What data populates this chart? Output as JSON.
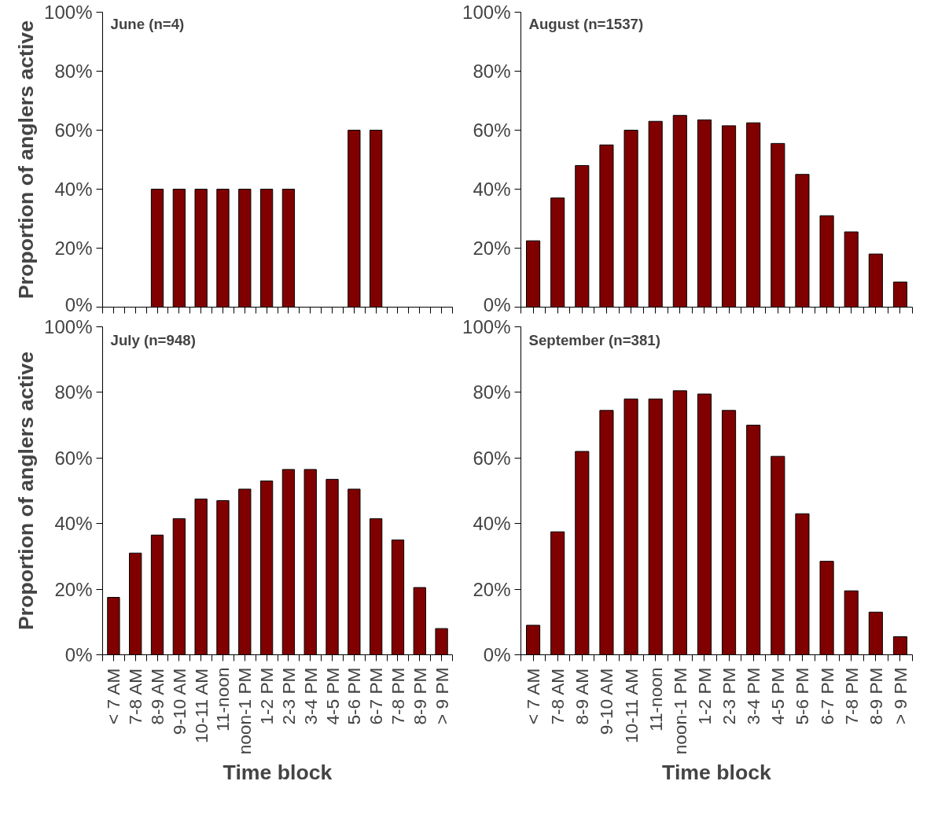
{
  "chart_data": [
    {
      "type": "bar",
      "title": "June (n=4)",
      "ylabel": "Proportion of anglers active",
      "categories": [
        null,
        null,
        null,
        null,
        null,
        null,
        null,
        null,
        null,
        null,
        null,
        null,
        null,
        null,
        null,
        null
      ],
      "values": [
        null,
        null,
        40,
        40,
        40,
        40,
        40,
        40,
        40,
        null,
        null,
        60,
        60,
        null,
        null,
        null
      ],
      "color": "#800000",
      "ylim": [
        0,
        100
      ],
      "yticks": [
        {
          "value": 0,
          "label": "0%"
        },
        {
          "value": 20,
          "label": "20%"
        },
        {
          "value": 40,
          "label": "40%"
        },
        {
          "value": 60,
          "label": "60%"
        },
        {
          "value": 80,
          "label": "80%"
        },
        {
          "value": 100,
          "label": "100%"
        }
      ],
      "tick_labels": "y",
      "grid": false
    },
    {
      "type": "bar",
      "title": "August (n=1537)",
      "categories": [
        null,
        null,
        null,
        null,
        null,
        null,
        null,
        null,
        null,
        null,
        null,
        null,
        null,
        null,
        null,
        null
      ],
      "values": [
        22.5,
        37,
        48,
        55,
        60,
        63,
        65,
        63.5,
        61.5,
        62.5,
        55.5,
        45,
        31,
        25.5,
        18,
        8.5
      ],
      "color": "#800000",
      "ylim": [
        0,
        100
      ],
      "yticks": [
        {
          "value": 0,
          "label": "0%"
        },
        {
          "value": 20,
          "label": "20%"
        },
        {
          "value": 40,
          "label": "40%"
        },
        {
          "value": 60,
          "label": "60%"
        },
        {
          "value": 80,
          "label": "80%"
        },
        {
          "value": 100,
          "label": "100%"
        }
      ],
      "tick_labels": "y",
      "grid": false
    },
    {
      "type": "bar",
      "title": "July (n=948)",
      "ylabel": "Proportion of anglers active",
      "xlabel": "Time block",
      "categories": [
        "< 7 AM",
        "7-8 AM",
        "8-9 AM",
        "9-10 AM",
        "10-11 AM",
        "11-noon",
        "noon-1 PM",
        "1-2 PM",
        "2-3 PM",
        "3-4 PM",
        "4-5 PM",
        "5-6 PM",
        "6-7 PM",
        "7-8 PM",
        "8-9 PM",
        "> 9 PM"
      ],
      "values": [
        17.5,
        31,
        36.5,
        41.5,
        47.5,
        47,
        50.5,
        53,
        56.5,
        56.5,
        53.5,
        50.5,
        41.5,
        35,
        20.5,
        8
      ],
      "color": "#800000",
      "ylim": [
        0,
        100
      ],
      "yticks": [
        {
          "value": 0,
          "label": "0%"
        },
        {
          "value": 20,
          "label": "20%"
        },
        {
          "value": 40,
          "label": "40%"
        },
        {
          "value": 60,
          "label": "60%"
        },
        {
          "value": 80,
          "label": "80%"
        },
        {
          "value": 100,
          "label": "100%"
        }
      ],
      "grid": false
    },
    {
      "type": "bar",
      "title": "September (n=381)",
      "xlabel": "Time block",
      "categories": [
        "< 7 AM",
        "7-8 AM",
        "8-9 AM",
        "9-10 AM",
        "10-11 AM",
        "11-noon",
        "noon-1 PM",
        "1-2 PM",
        "2-3 PM",
        "3-4 PM",
        "4-5 PM",
        "5-6 PM",
        "6-7 PM",
        "7-8 PM",
        "8-9 PM",
        "> 9 PM"
      ],
      "values": [
        9,
        37.5,
        62,
        74.5,
        78,
        78,
        80.5,
        79.5,
        74.5,
        70,
        60.5,
        43,
        28.5,
        19.5,
        13,
        5.5
      ],
      "color": "#800000",
      "ylim": [
        0,
        100
      ],
      "yticks": [
        {
          "value": 0,
          "label": "0%"
        },
        {
          "value": 20,
          "label": "20%"
        },
        {
          "value": 40,
          "label": "40%"
        },
        {
          "value": 60,
          "label": "60%"
        },
        {
          "value": 80,
          "label": "80%"
        },
        {
          "value": 100,
          "label": "100%"
        }
      ],
      "grid": false
    }
  ]
}
